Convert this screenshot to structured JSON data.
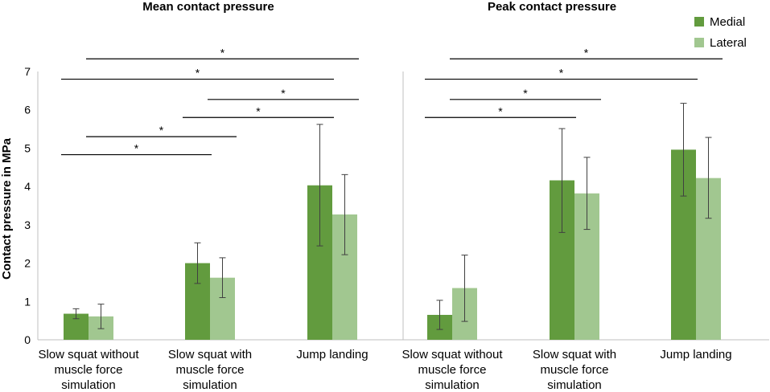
{
  "chart_data": {
    "type": "bar",
    "ylabel": "Contact pressure in MPa",
    "ylim": [
      0,
      7
    ],
    "yticks": [
      0,
      1,
      2,
      3,
      4,
      5,
      6,
      7
    ],
    "legend": {
      "position": "top-right",
      "items": [
        {
          "name": "Medial",
          "color": "#629b3e"
        },
        {
          "name": "Lateral",
          "color": "#a1c790"
        }
      ]
    },
    "panels": [
      {
        "title": "Mean contact pressure",
        "categories": [
          [
            "Slow squat without",
            "muscle force",
            "simulation"
          ],
          [
            "Slow squat with",
            "muscle force",
            "simulation"
          ],
          [
            "Jump landing"
          ]
        ],
        "series": [
          {
            "name": "Medial",
            "values": [
              0.68,
              2.0,
              4.03
            ],
            "err_low": [
              0.55,
              1.47,
              2.45
            ],
            "err_high": [
              0.81,
              2.53,
              5.62
            ]
          },
          {
            "name": "Lateral",
            "values": [
              0.61,
              1.62,
              3.27
            ],
            "err_low": [
              0.29,
              1.1,
              2.22
            ],
            "err_high": [
              0.93,
              2.14,
              4.31
            ]
          }
        ],
        "significance": [
          {
            "from": [
              0,
              0
            ],
            "to": [
              1,
              0
            ],
            "y": 4.83,
            "label": "*"
          },
          {
            "from": [
              0,
              1
            ],
            "to": [
              1,
              1
            ],
            "y": 5.3,
            "label": "*"
          },
          {
            "from": [
              1,
              0
            ],
            "to": [
              2,
              0
            ],
            "y": 5.8,
            "label": "*"
          },
          {
            "from": [
              1,
              1
            ],
            "to": [
              2,
              1
            ],
            "y": 6.27,
            "label": "*"
          },
          {
            "from": [
              0,
              0
            ],
            "to": [
              2,
              0
            ],
            "y": 6.8,
            "label": "*"
          },
          {
            "from": [
              0,
              1
            ],
            "to": [
              2,
              1
            ],
            "y": 7.33,
            "label": "*"
          }
        ]
      },
      {
        "title": "Peak contact pressure",
        "categories": [
          [
            "Slow squat without",
            "muscle force",
            "simulation"
          ],
          [
            "Slow squat with",
            "muscle force",
            "simulation"
          ],
          [
            "Jump landing"
          ]
        ],
        "series": [
          {
            "name": "Medial",
            "values": [
              0.65,
              4.16,
              4.96
            ],
            "err_low": [
              0.27,
              2.8,
              3.75
            ],
            "err_high": [
              1.03,
              5.51,
              6.17
            ]
          },
          {
            "name": "Lateral",
            "values": [
              1.35,
              3.82,
              4.22
            ],
            "err_low": [
              0.48,
              2.88,
              3.17
            ],
            "err_high": [
              2.21,
              4.76,
              5.28
            ]
          }
        ],
        "significance": [
          {
            "from": [
              0,
              0
            ],
            "to": [
              1,
              0
            ],
            "y": 5.8,
            "label": "*"
          },
          {
            "from": [
              0,
              1
            ],
            "to": [
              1,
              1
            ],
            "y": 6.27,
            "label": "*"
          },
          {
            "from": [
              0,
              0
            ],
            "to": [
              2,
              0
            ],
            "y": 6.8,
            "label": "*"
          },
          {
            "from": [
              0,
              1
            ],
            "to": [
              2,
              1
            ],
            "y": 7.33,
            "label": "*"
          }
        ]
      }
    ]
  }
}
